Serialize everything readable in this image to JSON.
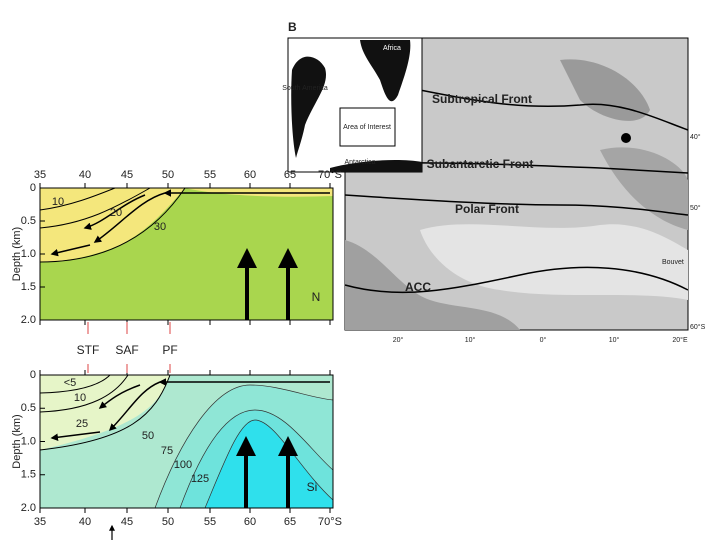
{
  "panel_label": "B",
  "map": {
    "inset_labels": [
      "Africa",
      "South America",
      "Area of Interest",
      "Antarctica"
    ],
    "fronts": [
      "Subtropical Front",
      "Subantarctic Front",
      "Polar Front",
      "ACC"
    ],
    "island": "Bouvet",
    "lon_labels": [
      "20°",
      "10°",
      "0°",
      "10°",
      "20°E"
    ],
    "lat_labels": [
      "40°",
      "50°",
      "60°S"
    ]
  },
  "section_n": {
    "y_axis_label": "Depth (km)",
    "x_tick_labels": [
      "35",
      "40",
      "45",
      "50",
      "55",
      "60",
      "65",
      "70°S"
    ],
    "y_tick_labels": [
      "0",
      "0.5",
      "1.0",
      "1.5",
      "2.0"
    ],
    "contour_labels": [
      "10",
      "20",
      "30"
    ],
    "tracer": "N"
  },
  "front_labels": [
    "STF",
    "SAF",
    "PF"
  ],
  "section_si": {
    "y_axis_label": "Depth (km)",
    "x_tick_labels": [
      "35",
      "40",
      "45",
      "50",
      "55",
      "60",
      "65",
      "70°S"
    ],
    "y_tick_labels": [
      "0",
      "0.5",
      "1.0",
      "1.5",
      "2.0"
    ],
    "contour_labels": [
      "<5",
      "10",
      "25",
      "50",
      "75",
      "100",
      "125"
    ],
    "tracer": "Si"
  }
}
